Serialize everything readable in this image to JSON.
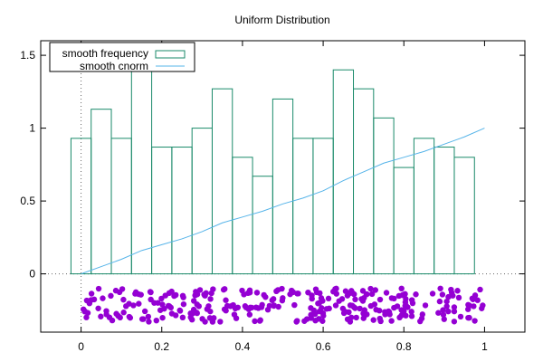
{
  "chart_data": {
    "type": "bar",
    "title": "Uniform Distribution",
    "xlabel": "",
    "ylabel": "",
    "xlim": [
      -0.1,
      1.1
    ],
    "ylim": [
      -0.4,
      1.6
    ],
    "x_ticks": [
      0,
      0.2,
      0.4,
      0.6,
      0.8,
      1
    ],
    "x_tick_labels": [
      "0",
      "0.2",
      "0.4",
      "0.6",
      "0.8",
      "1"
    ],
    "y_ticks": [
      0,
      0.5,
      1,
      1.5
    ],
    "y_tick_labels": [
      "0",
      "0.5",
      "1",
      "1.5"
    ],
    "grid": false,
    "zero_axes_dotted": true,
    "legend_position": "top-left",
    "colors": {
      "histogram": "#1a8a6a",
      "cnorm": "#56b4e9",
      "points": "#9400d3",
      "text": "#000000",
      "border": "#000000"
    },
    "series": [
      {
        "name": "smooth frequency",
        "kind": "histogram",
        "bin_width": 0.05,
        "bin_centers": [
          0.0,
          0.05,
          0.1,
          0.15,
          0.2,
          0.25,
          0.3,
          0.35,
          0.4,
          0.45,
          0.5,
          0.55,
          0.6,
          0.65,
          0.7,
          0.75,
          0.8,
          0.85,
          0.9,
          0.95
        ],
        "values": [
          0.93,
          1.13,
          0.93,
          1.4,
          0.87,
          0.87,
          1.0,
          1.27,
          0.8,
          0.67,
          1.2,
          0.93,
          0.93,
          1.4,
          1.27,
          1.07,
          0.73,
          0.93,
          0.87,
          0.8
        ]
      },
      {
        "name": "smooth cnorm",
        "kind": "line",
        "x": [
          0.0,
          0.05,
          0.1,
          0.15,
          0.2,
          0.25,
          0.3,
          0.35,
          0.4,
          0.45,
          0.5,
          0.55,
          0.6,
          0.65,
          0.7,
          0.75,
          0.8,
          0.85,
          0.9,
          0.95,
          1.0
        ],
        "y": [
          0.0,
          0.05,
          0.1,
          0.16,
          0.2,
          0.24,
          0.29,
          0.35,
          0.39,
          0.43,
          0.48,
          0.52,
          0.57,
          0.64,
          0.7,
          0.76,
          0.8,
          0.84,
          0.89,
          0.94,
          1.0
        ]
      },
      {
        "kind": "scatter",
        "description_points": "random samples jittered below axis",
        "x_range": [
          0,
          1
        ],
        "y_range": [
          -0.33,
          -0.1
        ],
        "count": 300
      }
    ]
  }
}
